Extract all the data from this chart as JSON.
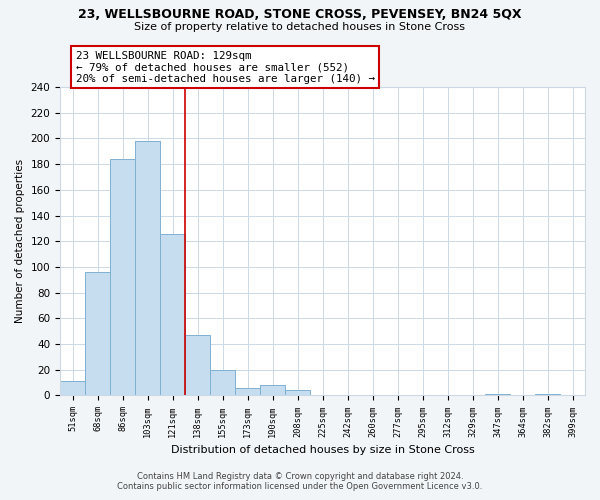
{
  "title": "23, WELLSBOURNE ROAD, STONE CROSS, PEVENSEY, BN24 5QX",
  "subtitle": "Size of property relative to detached houses in Stone Cross",
  "xlabel": "Distribution of detached houses by size in Stone Cross",
  "ylabel": "Number of detached properties",
  "bin_labels": [
    "51sqm",
    "68sqm",
    "86sqm",
    "103sqm",
    "121sqm",
    "138sqm",
    "155sqm",
    "173sqm",
    "190sqm",
    "208sqm",
    "225sqm",
    "242sqm",
    "260sqm",
    "277sqm",
    "295sqm",
    "312sqm",
    "329sqm",
    "347sqm",
    "364sqm",
    "382sqm",
    "399sqm"
  ],
  "bar_heights": [
    11,
    96,
    184,
    198,
    126,
    47,
    20,
    6,
    8,
    4,
    0,
    0,
    0,
    0,
    0,
    0,
    0,
    1,
    0,
    1,
    0
  ],
  "bar_color": "#c6ddf0",
  "bar_edge_color": "#7fb0d0",
  "highlight_line_color": "#cc0000",
  "annotation_box_text": "23 WELLSBOURNE ROAD: 129sqm\n← 79% of detached houses are smaller (552)\n20% of semi-detached houses are larger (140) →",
  "annotation_box_color": "#cc0000",
  "ylim": [
    0,
    240
  ],
  "yticks": [
    0,
    20,
    40,
    60,
    80,
    100,
    120,
    140,
    160,
    180,
    200,
    220,
    240
  ],
  "footer_line1": "Contains HM Land Registry data © Crown copyright and database right 2024.",
  "footer_line2": "Contains public sector information licensed under the Open Government Licence v3.0.",
  "bg_color": "#f2f5f8",
  "plot_bg_color": "#ffffff",
  "grid_color": "#ccd8e4"
}
